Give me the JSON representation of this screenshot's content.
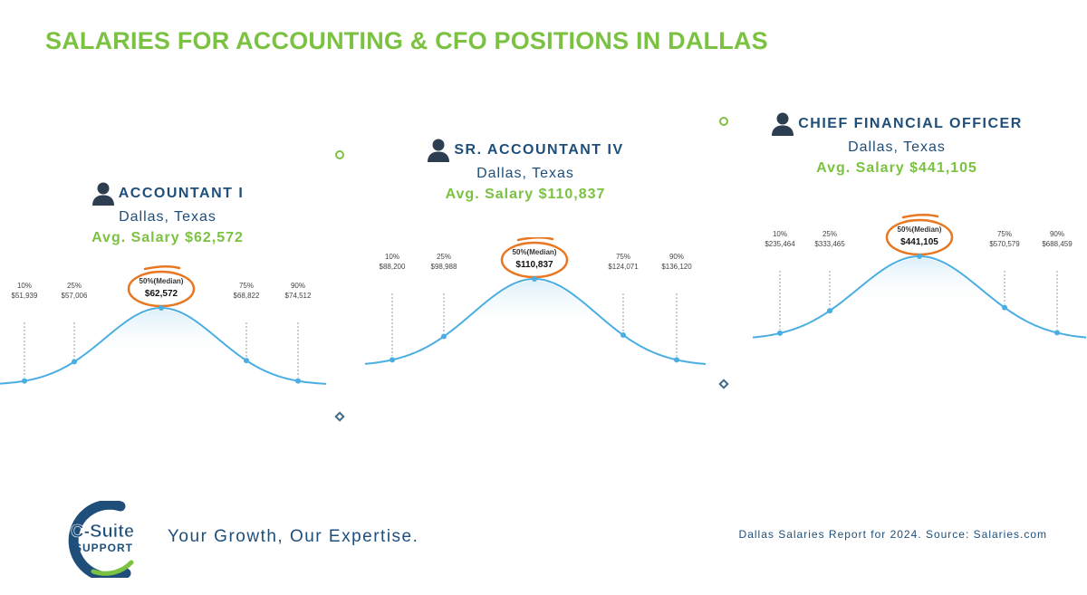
{
  "page_title": "SALARIES FOR ACCOUNTING & CFO POSITIONS IN DALLAS",
  "colors": {
    "green": "#7cc242",
    "navy": "#1e4e79",
    "curve": "#4aaee3",
    "highlight": "#e87722"
  },
  "icons": {
    "person": "person-icon",
    "divider_top": "circle-marker-icon",
    "divider_bottom": "diamond-marker-icon"
  },
  "chart_data": [
    {
      "type": "line",
      "job_title": "ACCOUNTANT I",
      "location": "Dallas, Texas",
      "avg_salary": "Avg. Salary $62,572",
      "percentiles": [
        {
          "label": "10%",
          "value": "$51,939"
        },
        {
          "label": "25%",
          "value": "$57,006"
        },
        {
          "label": "50%(Median)",
          "value": "$62,572"
        },
        {
          "label": "75%",
          "value": "$68,822"
        },
        {
          "label": "90%",
          "value": "$74,512"
        }
      ]
    },
    {
      "type": "line",
      "job_title": "SR. ACCOUNTANT IV",
      "location": "Dallas, Texas",
      "avg_salary": "Avg. Salary $110,837",
      "percentiles": [
        {
          "label": "10%",
          "value": "$88,200"
        },
        {
          "label": "25%",
          "value": "$98,988"
        },
        {
          "label": "50%(Median)",
          "value": "$110,837"
        },
        {
          "label": "75%",
          "value": "$124,071"
        },
        {
          "label": "90%",
          "value": "$136,120"
        }
      ]
    },
    {
      "type": "line",
      "job_title": "CHIEF FINANCIAL OFFICER",
      "location": "Dallas, Texas",
      "avg_salary": "Avg. Salary $441,105",
      "percentiles": [
        {
          "label": "10%",
          "value": "$235,464"
        },
        {
          "label": "25%",
          "value": "$333,465"
        },
        {
          "label": "50%(Median)",
          "value": "$441,105"
        },
        {
          "label": "75%",
          "value": "$570,579"
        },
        {
          "label": "90%",
          "value": "$688,459"
        }
      ]
    }
  ],
  "footer": {
    "logo_top": "C-Suite",
    "logo_bottom": "SUPPORT",
    "tagline": "Your Growth, Our Expertise.",
    "source": "Dallas Salaries Report for 2024. Source: Salaries.com"
  }
}
